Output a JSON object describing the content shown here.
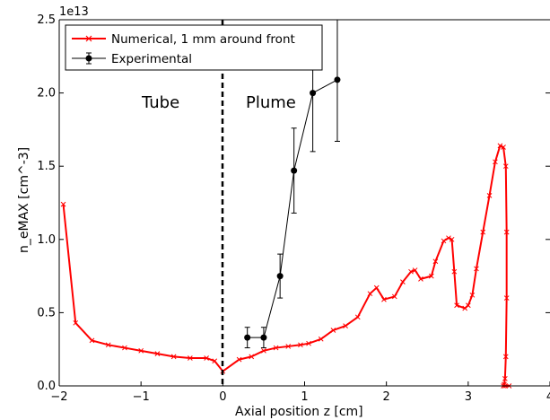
{
  "chart_data": {
    "type": "line",
    "title": "",
    "offset_text": "1e13",
    "xlabel": "Axial position z [cm]",
    "ylabel": "n_eMAX [cm^-3]",
    "xlim": [
      -2,
      4
    ],
    "ylim": [
      0,
      2.5
    ],
    "x_ticks": [
      {
        "value": -2,
        "label": "−2"
      },
      {
        "value": -1,
        "label": "−1"
      },
      {
        "value": 0,
        "label": "0"
      },
      {
        "value": 1,
        "label": "1"
      },
      {
        "value": 2,
        "label": "2"
      },
      {
        "value": 3,
        "label": "3"
      },
      {
        "value": 4,
        "label": "4"
      }
    ],
    "y_ticks": [
      {
        "value": 0,
        "label": "0.0"
      },
      {
        "value": 0.5,
        "label": "0.5"
      },
      {
        "value": 1.0,
        "label": "1.0"
      },
      {
        "value": 1.5,
        "label": "1.5"
      },
      {
        "value": 2.0,
        "label": "2.0"
      },
      {
        "value": 2.5,
        "label": "2.5"
      }
    ],
    "grid": false,
    "legend_position": "top-left",
    "annotations": [
      {
        "text": "Tube",
        "x": -0.75,
        "y": 1.93
      },
      {
        "text": "Plume",
        "x": 0.62,
        "y": 1.93
      }
    ],
    "vline": {
      "x": 0,
      "style": "dashed"
    },
    "series": [
      {
        "name": "Numerical, 1 mm around front",
        "color": "#ff0000",
        "marker": "x",
        "x": [
          -1.95,
          -1.8,
          -1.6,
          -1.4,
          -1.2,
          -1.0,
          -0.8,
          -0.6,
          -0.4,
          -0.2,
          -0.1,
          0.0,
          0.2,
          0.35,
          0.5,
          0.65,
          0.8,
          0.95,
          1.05,
          1.2,
          1.35,
          1.5,
          1.65,
          1.8,
          1.88,
          1.97,
          2.1,
          2.2,
          2.3,
          2.35,
          2.42,
          2.55,
          2.6,
          2.7,
          2.76,
          2.8,
          2.83,
          2.86,
          2.96,
          3.0,
          3.05,
          3.1,
          3.18,
          3.26,
          3.33,
          3.39,
          3.43,
          3.46,
          3.47,
          3.47,
          3.46,
          3.45,
          3.44,
          3.43,
          3.45,
          3.5
        ],
        "values": [
          1.24,
          0.43,
          0.31,
          0.28,
          0.26,
          0.24,
          0.22,
          0.2,
          0.19,
          0.19,
          0.17,
          0.1,
          0.18,
          0.2,
          0.24,
          0.26,
          0.27,
          0.28,
          0.29,
          0.32,
          0.38,
          0.41,
          0.47,
          0.63,
          0.67,
          0.59,
          0.61,
          0.71,
          0.78,
          0.79,
          0.73,
          0.75,
          0.85,
          0.99,
          1.01,
          1.0,
          0.78,
          0.55,
          0.53,
          0.55,
          0.62,
          0.8,
          1.05,
          1.3,
          1.53,
          1.64,
          1.63,
          1.5,
          1.05,
          0.6,
          0.2,
          0.05,
          0.01,
          0.0,
          0.0,
          0.0
        ]
      },
      {
        "name": "Experimental",
        "color": "#000000",
        "marker": "o",
        "x": [
          0.3,
          0.5,
          0.7,
          0.87,
          1.1,
          1.4
        ],
        "values": [
          0.33,
          0.33,
          0.75,
          1.47,
          2.0,
          2.09
        ],
        "errors": [
          0.07,
          0.07,
          0.15,
          0.29,
          0.4,
          0.42
        ]
      }
    ]
  }
}
